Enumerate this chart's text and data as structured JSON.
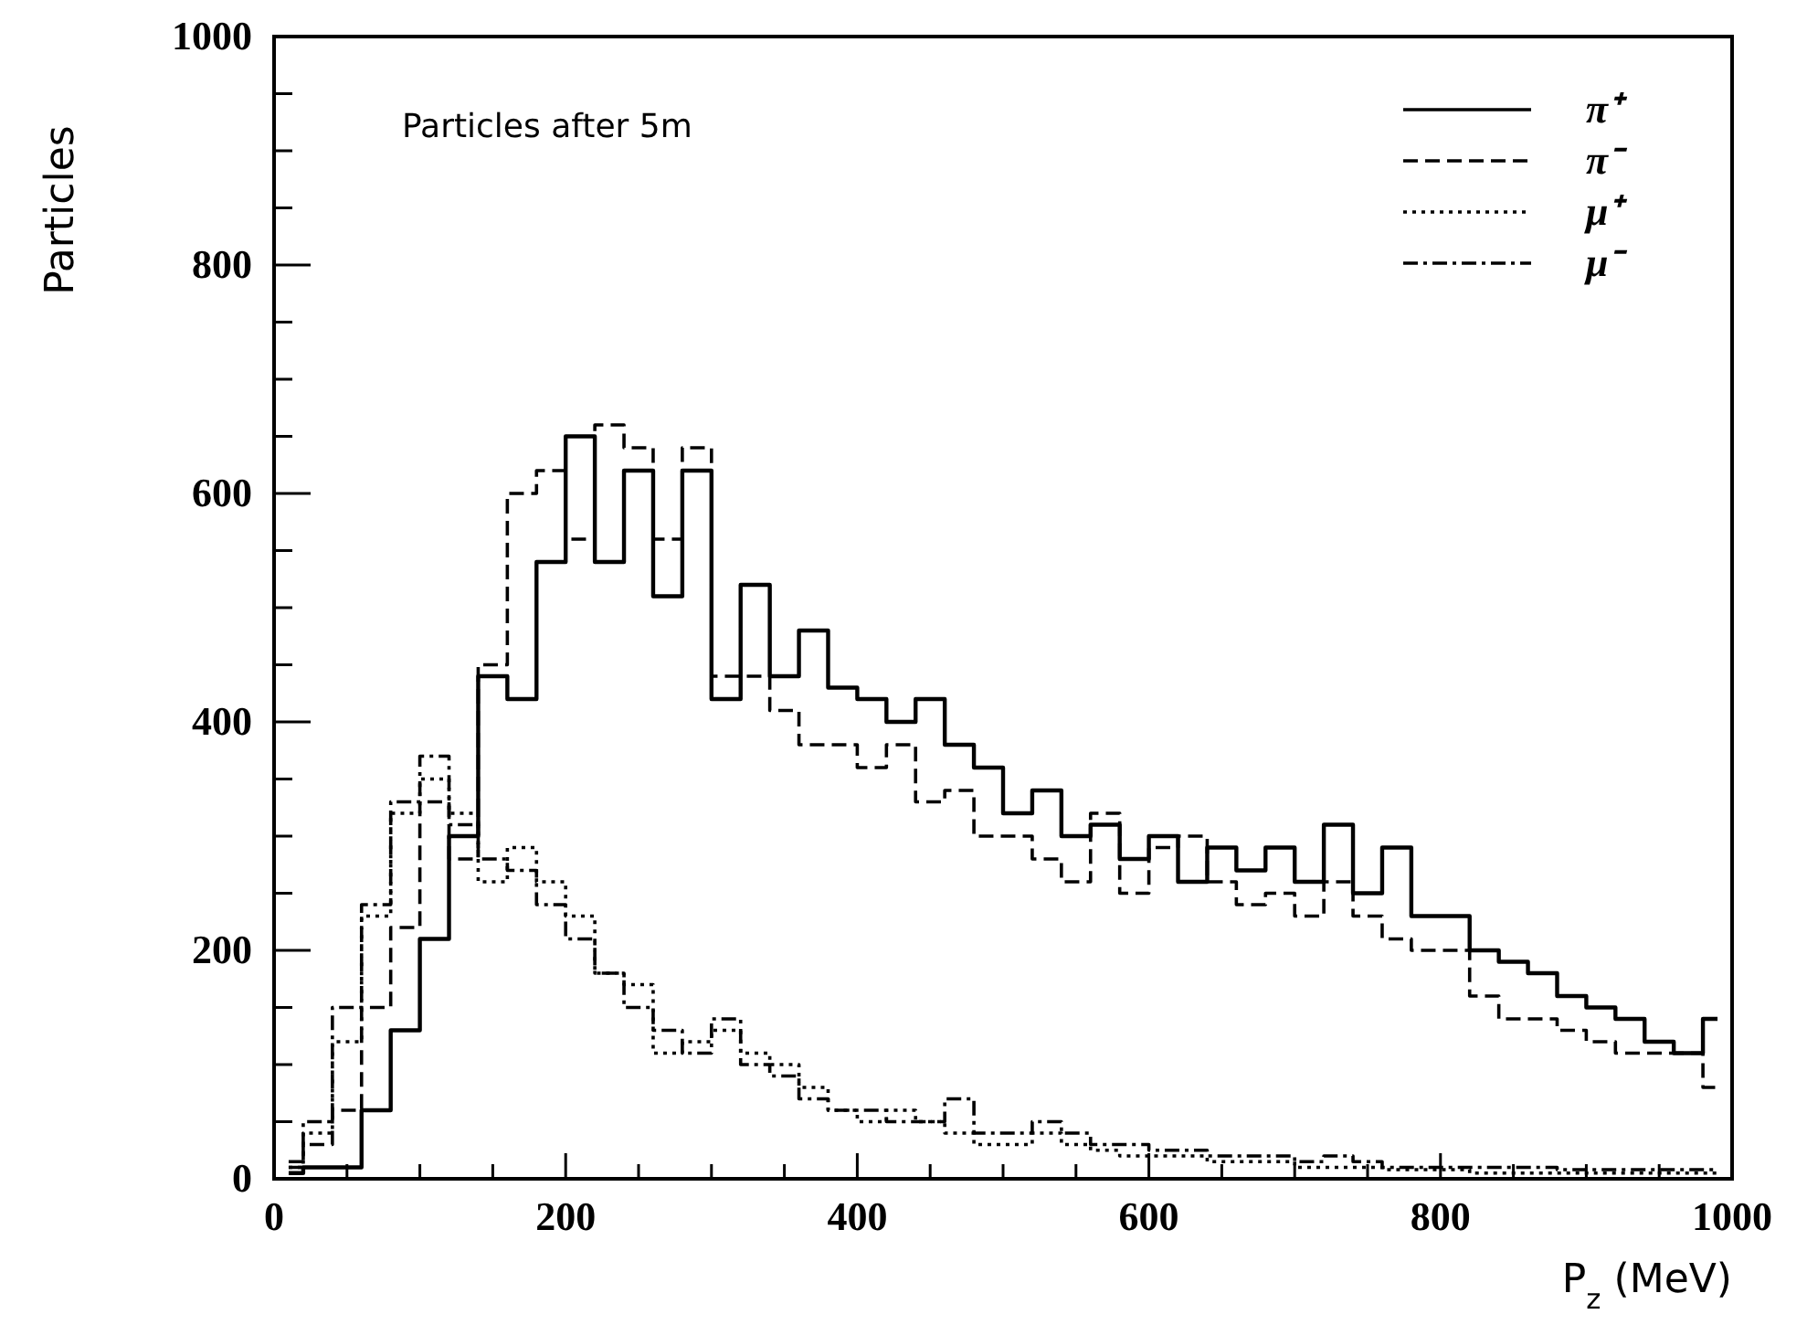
{
  "chart_data": {
    "type": "step",
    "xlabel": "P$_{z}$ (MeV)",
    "ylabel": "Particles",
    "annotations": [
      "Particles after 5m"
    ],
    "x": [
      10,
      30,
      50,
      70,
      90,
      110,
      130,
      150,
      170,
      190,
      210,
      230,
      250,
      270,
      290,
      310,
      330,
      350,
      370,
      390,
      410,
      430,
      450,
      470,
      490,
      510,
      530,
      550,
      570,
      590,
      610,
      630,
      650,
      670,
      690,
      710,
      730,
      750,
      770,
      790,
      810,
      830,
      850,
      870,
      890,
      910,
      930,
      950,
      970,
      990
    ],
    "series": [
      {
        "name": "π⁺",
        "color": "#000000",
        "line_style": "solid",
        "values": [
          5,
          10,
          10,
          60,
          130,
          210,
          300,
          440,
          420,
          540,
          650,
          540,
          620,
          510,
          620,
          420,
          520,
          440,
          480,
          430,
          420,
          400,
          420,
          380,
          360,
          320,
          340,
          300,
          310,
          280,
          300,
          260,
          290,
          270,
          290,
          260,
          310,
          250,
          290,
          230,
          230,
          200,
          190,
          180,
          160,
          150,
          140,
          120,
          110,
          140
        ]
      },
      {
        "name": "π⁻",
        "color": "#000000",
        "line_style": "dashed",
        "values": [
          10,
          30,
          60,
          150,
          220,
          330,
          280,
          450,
          600,
          620,
          560,
          660,
          640,
          560,
          640,
          440,
          440,
          410,
          380,
          380,
          360,
          380,
          330,
          340,
          300,
          300,
          280,
          260,
          320,
          250,
          290,
          300,
          260,
          240,
          250,
          230,
          260,
          230,
          210,
          200,
          200,
          160,
          140,
          140,
          130,
          120,
          110,
          110,
          110,
          80
        ]
      },
      {
        "name": "μ⁺",
        "color": "#000000",
        "line_style": "dotted",
        "values": [
          10,
          40,
          120,
          230,
          320,
          350,
          320,
          260,
          290,
          260,
          230,
          180,
          170,
          110,
          120,
          130,
          110,
          100,
          80,
          60,
          50,
          60,
          50,
          40,
          30,
          30,
          40,
          30,
          25,
          20,
          20,
          20,
          15,
          15,
          15,
          10,
          10,
          10,
          8,
          8,
          8,
          5,
          5,
          5,
          5,
          5,
          5,
          5,
          5,
          5
        ]
      },
      {
        "name": "μ⁻",
        "color": "#000000",
        "line_style": "dashdot",
        "values": [
          15,
          50,
          150,
          240,
          330,
          370,
          310,
          280,
          270,
          240,
          210,
          180,
          150,
          130,
          110,
          140,
          100,
          90,
          70,
          60,
          60,
          50,
          50,
          70,
          40,
          40,
          50,
          40,
          30,
          30,
          25,
          25,
          20,
          20,
          20,
          15,
          20,
          15,
          10,
          10,
          10,
          10,
          10,
          10,
          8,
          8,
          8,
          8,
          8,
          8
        ]
      }
    ],
    "xlim": [
      0,
      1000
    ],
    "xticks": [
      0,
      {
        "value": 50,
        "label": null
      },
      {
        "value": 100,
        "label": null
      },
      {
        "value": 150,
        "label": null
      },
      200,
      {
        "value": 250,
        "label": null
      },
      {
        "value": 300,
        "label": null
      },
      {
        "value": 350,
        "label": null
      },
      400,
      {
        "value": 450,
        "label": null
      },
      {
        "value": 500,
        "label": null
      },
      {
        "value": 550,
        "label": null
      },
      600,
      {
        "value": 650,
        "label": null
      },
      {
        "value": 700,
        "label": null
      },
      {
        "value": 750,
        "label": null
      },
      800,
      {
        "value": 850,
        "label": null
      },
      {
        "value": 900,
        "label": null
      },
      {
        "value": 950,
        "label": null
      },
      1000
    ],
    "ylim": [
      0,
      1000
    ],
    "yticks": [
      0,
      {
        "value": 50,
        "label": null
      },
      {
        "value": 100,
        "label": null
      },
      {
        "value": 150,
        "label": null
      },
      200,
      {
        "value": 250,
        "label": null
      },
      {
        "value": 300,
        "label": null
      },
      {
        "value": 350,
        "label": null
      },
      400,
      {
        "value": 450,
        "label": null
      },
      {
        "value": 500,
        "label": null
      },
      {
        "value": 550,
        "label": null
      },
      600,
      {
        "value": 650,
        "label": null
      },
      {
        "value": 700,
        "label": null
      },
      {
        "value": 750,
        "label": null
      },
      800,
      {
        "value": 850,
        "label": null
      },
      {
        "value": 900,
        "label": null
      },
      {
        "value": 950,
        "label": null
      },
      1000
    ],
    "legend": "top right",
    "grid": false
  }
}
